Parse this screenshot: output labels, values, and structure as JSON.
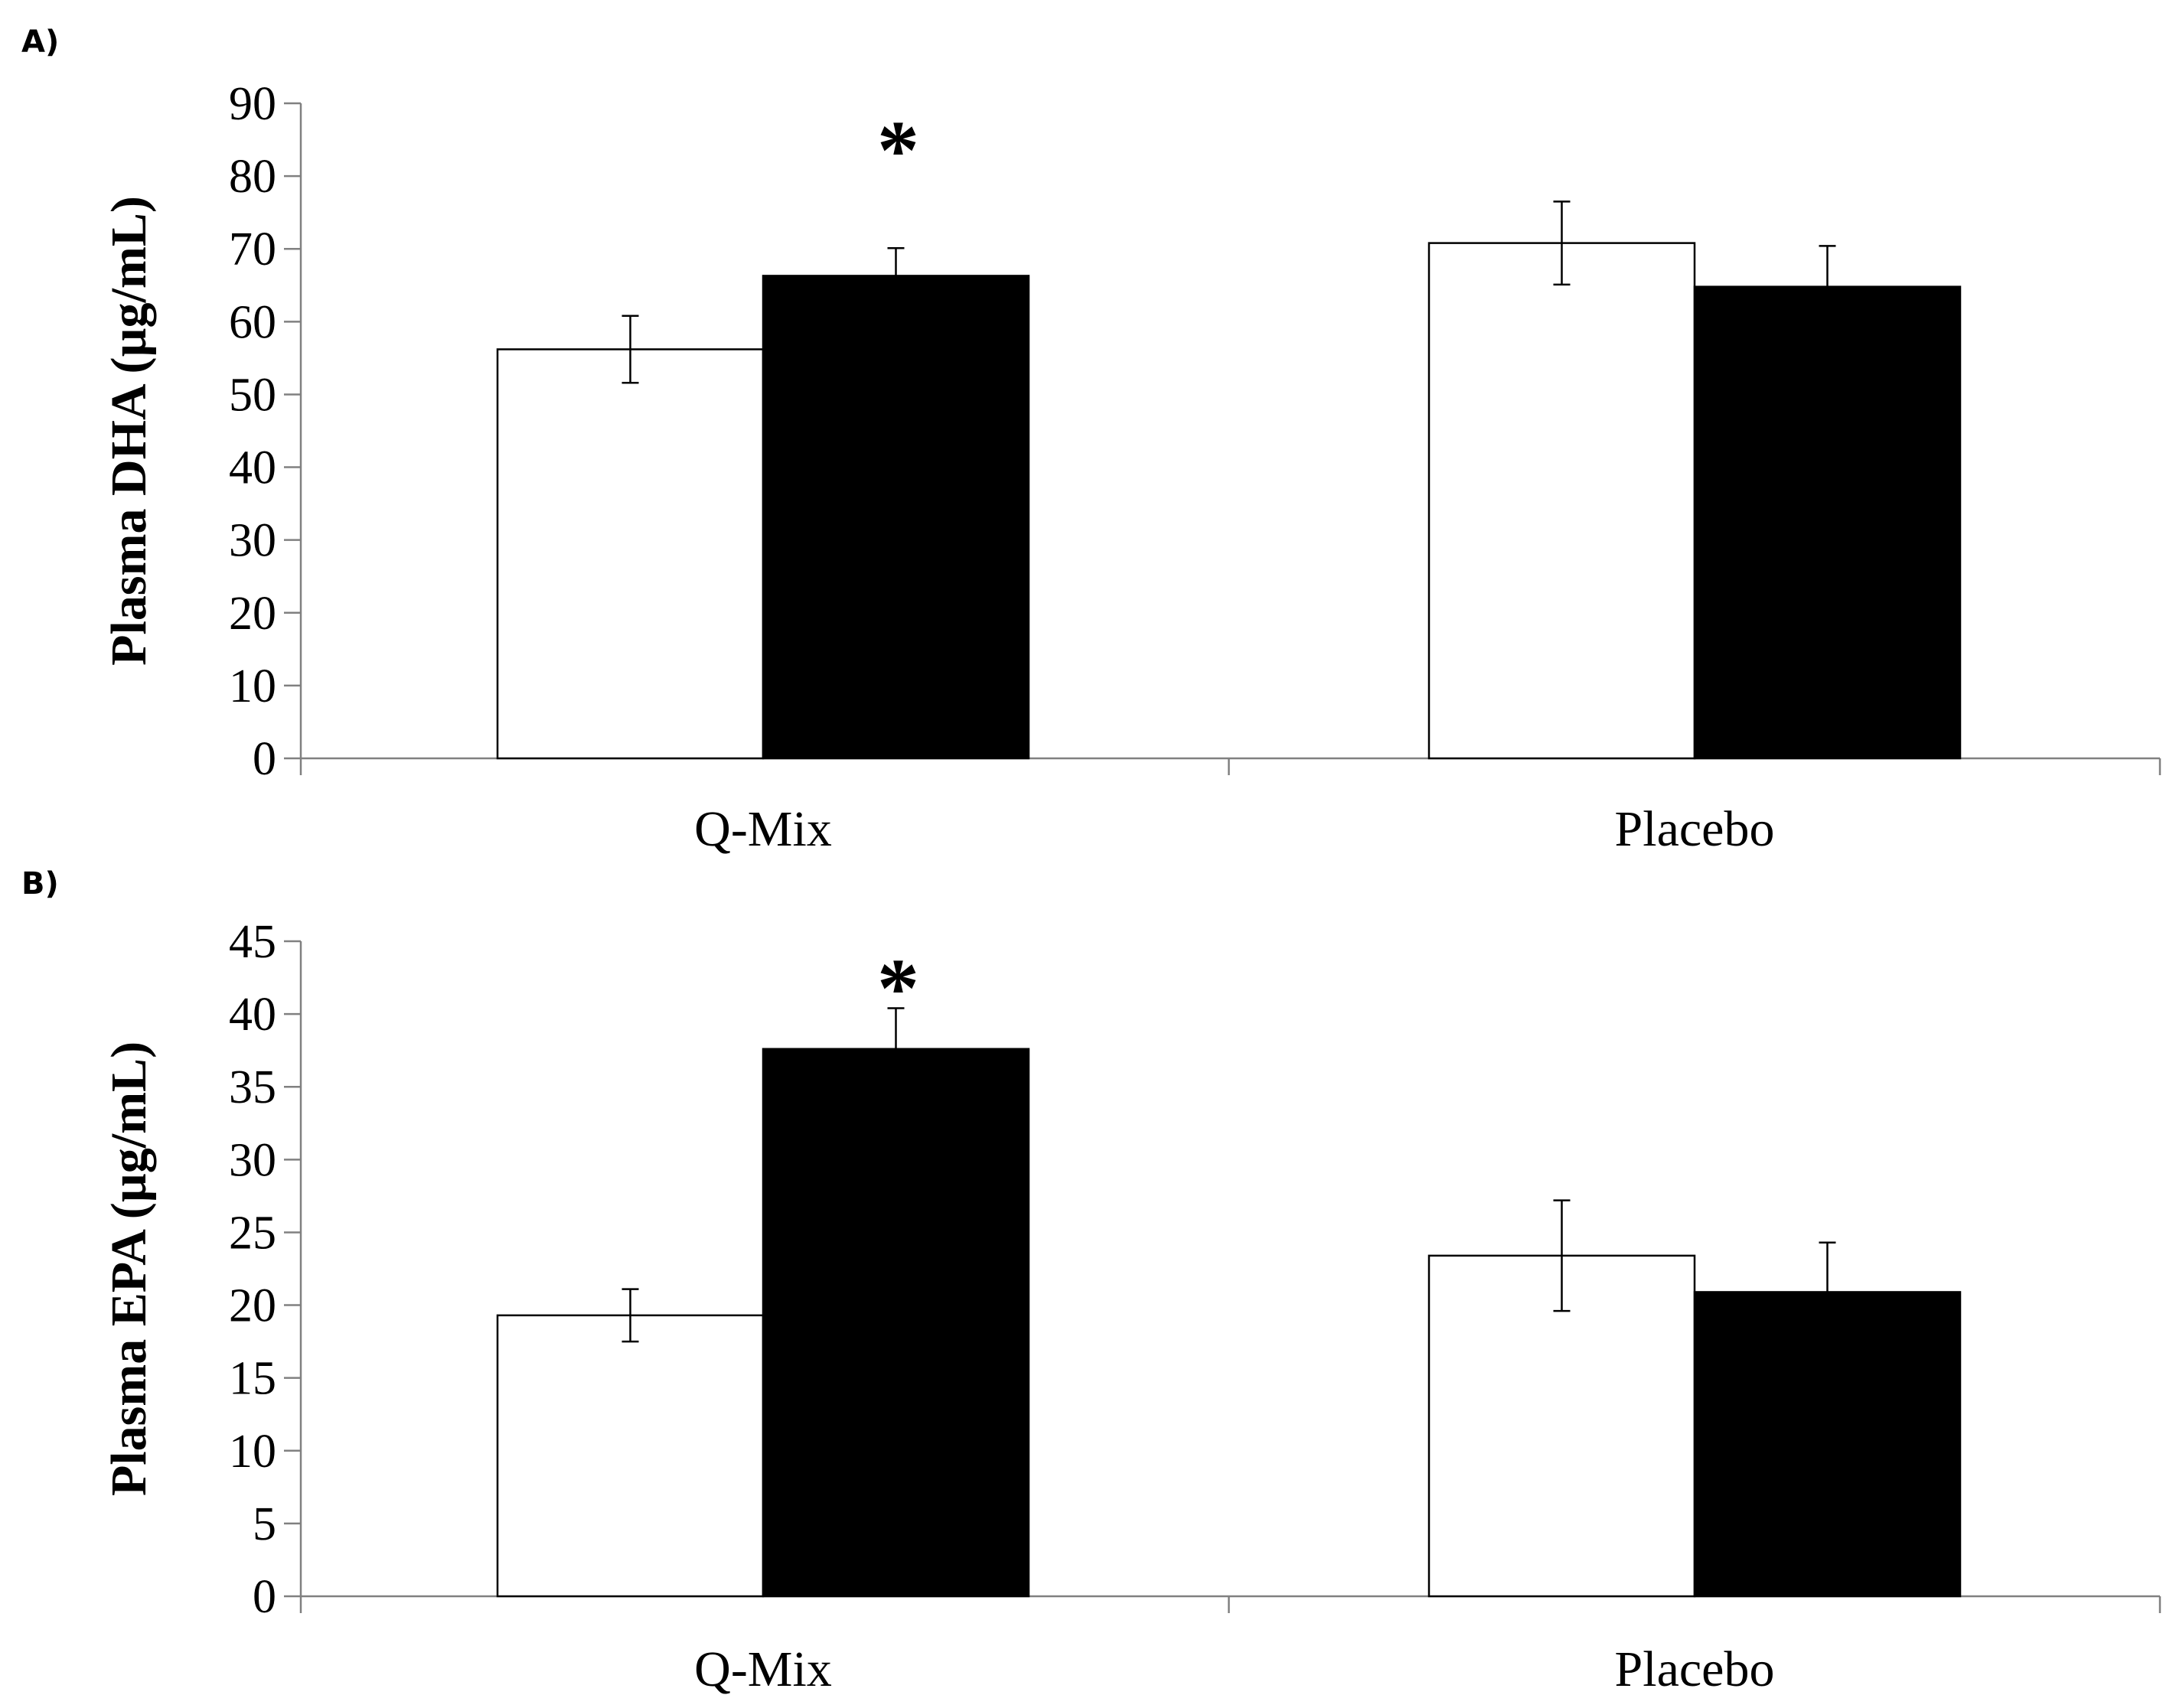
{
  "chart_data": [
    {
      "panel": "A)",
      "type": "bar",
      "categories": [
        "Q-Mix",
        "Placebo"
      ],
      "ylabel": "Plasma DHA (µg/mL)",
      "ylim": [
        0,
        90
      ],
      "yticks": [
        0,
        10,
        20,
        30,
        40,
        50,
        60,
        70,
        80,
        90
      ],
      "series": [
        {
          "fill": "#ffffff",
          "values": [
            56.2,
            70.8
          ],
          "errors": [
            4.6,
            5.7
          ]
        },
        {
          "fill": "#000000",
          "values": [
            66.3,
            64.8
          ],
          "errors": [
            3.8,
            5.6
          ]
        }
      ],
      "annotations": [
        {
          "text": "*",
          "category": "Q-Mix",
          "series": 1
        }
      ],
      "legend": "none",
      "grid": false
    },
    {
      "panel": "B)",
      "type": "bar",
      "categories": [
        "Q-Mix",
        "Placebo"
      ],
      "ylabel": "Plasma EPA (µg/mL)",
      "ylim": [
        0,
        45
      ],
      "yticks": [
        0,
        5,
        10,
        15,
        20,
        25,
        30,
        35,
        40,
        45
      ],
      "series": [
        {
          "fill": "#ffffff",
          "values": [
            19.3,
            23.4
          ],
          "errors": [
            1.8,
            3.8
          ]
        },
        {
          "fill": "#000000",
          "values": [
            37.6,
            20.9
          ],
          "errors": [
            2.8,
            3.4
          ]
        }
      ],
      "annotations": [
        {
          "text": "*",
          "category": "Q-Mix",
          "series": 1
        }
      ],
      "legend": "none",
      "grid": false
    }
  ]
}
